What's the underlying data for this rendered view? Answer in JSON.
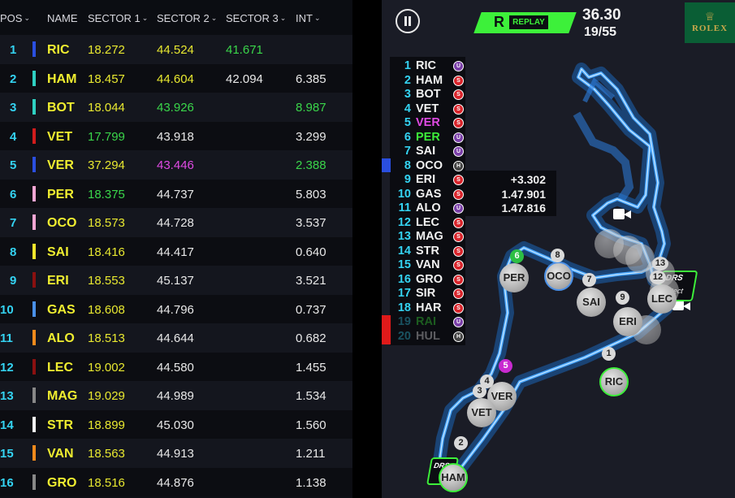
{
  "timing_table": {
    "headers": {
      "pos": "POS",
      "name": "NAME",
      "s1": "SECTOR 1",
      "s2": "SECTOR 2",
      "s3": "SECTOR 3",
      "int": "INT"
    },
    "rows": [
      {
        "pos": "1",
        "name": "RIC",
        "color": "#2a4fe0",
        "s1": "18.272",
        "s1c": "yellow",
        "s2": "44.524",
        "s2c": "yellow",
        "s3": "41.671",
        "s3c": "green",
        "int": "",
        "intc": "white"
      },
      {
        "pos": "2",
        "name": "HAM",
        "color": "#2fd0c2",
        "s1": "18.457",
        "s1c": "yellow",
        "s2": "44.604",
        "s2c": "yellow",
        "s3": "42.094",
        "s3c": "white",
        "int": "6.385",
        "intc": "white"
      },
      {
        "pos": "3",
        "name": "BOT",
        "color": "#2fd0c2",
        "s1": "18.044",
        "s1c": "yellow",
        "s2": "43.926",
        "s2c": "green",
        "s3": "",
        "s3c": "white",
        "int": "8.987",
        "intc": "green"
      },
      {
        "pos": "4",
        "name": "VET",
        "color": "#d11c1c",
        "s1": "17.799",
        "s1c": "green",
        "s2": "43.918",
        "s2c": "white",
        "s3": "",
        "s3c": "white",
        "int": "3.299",
        "intc": "white"
      },
      {
        "pos": "5",
        "name": "VER",
        "color": "#2a4fe0",
        "s1": "37.294",
        "s1c": "yellow",
        "s2": "43.446",
        "s2c": "purple",
        "s3": "",
        "s3c": "white",
        "int": "2.388",
        "intc": "green"
      },
      {
        "pos": "6",
        "name": "PER",
        "color": "#f4a6d4",
        "s1": "18.375",
        "s1c": "green",
        "s2": "44.737",
        "s2c": "white",
        "s3": "",
        "s3c": "white",
        "int": "5.803",
        "intc": "white"
      },
      {
        "pos": "7",
        "name": "OCO",
        "color": "#f4a6d4",
        "s1": "18.573",
        "s1c": "yellow",
        "s2": "44.728",
        "s2c": "white",
        "s3": "",
        "s3c": "white",
        "int": "3.537",
        "intc": "white"
      },
      {
        "pos": "8",
        "name": "SAI",
        "color": "#f2e62c",
        "s1": "18.416",
        "s1c": "yellow",
        "s2": "44.417",
        "s2c": "white",
        "s3": "",
        "s3c": "white",
        "int": "0.640",
        "intc": "white"
      },
      {
        "pos": "9",
        "name": "ERI",
        "color": "#8a1010",
        "s1": "18.553",
        "s1c": "yellow",
        "s2": "45.137",
        "s2c": "white",
        "s3": "",
        "s3c": "white",
        "int": "3.521",
        "intc": "white"
      },
      {
        "pos": "10",
        "name": "GAS",
        "color": "#4a90e8",
        "s1": "18.608",
        "s1c": "yellow",
        "s2": "44.796",
        "s2c": "white",
        "s3": "",
        "s3c": "white",
        "int": "0.737",
        "intc": "white"
      },
      {
        "pos": "11",
        "name": "ALO",
        "color": "#f08a1c",
        "s1": "18.513",
        "s1c": "yellow",
        "s2": "44.644",
        "s2c": "white",
        "s3": "",
        "s3c": "white",
        "int": "0.682",
        "intc": "white"
      },
      {
        "pos": "12",
        "name": "LEC",
        "color": "#8a1010",
        "s1": "19.002",
        "s1c": "yellow",
        "s2": "44.580",
        "s2c": "white",
        "s3": "",
        "s3c": "white",
        "int": "1.455",
        "intc": "white"
      },
      {
        "pos": "13",
        "name": "MAG",
        "color": "#888888",
        "s1": "19.029",
        "s1c": "yellow",
        "s2": "44.989",
        "s2c": "white",
        "s3": "",
        "s3c": "white",
        "int": "1.534",
        "intc": "white"
      },
      {
        "pos": "14",
        "name": "STR",
        "color": "#f4f4f4",
        "s1": "18.899",
        "s1c": "yellow",
        "s2": "45.030",
        "s2c": "white",
        "s3": "",
        "s3c": "white",
        "int": "1.560",
        "intc": "white"
      },
      {
        "pos": "15",
        "name": "VAN",
        "color": "#f08a1c",
        "s1": "18.563",
        "s1c": "yellow",
        "s2": "44.913",
        "s2c": "white",
        "s3": "",
        "s3c": "white",
        "int": "1.211",
        "intc": "white"
      },
      {
        "pos": "16",
        "name": "GRO",
        "color": "#888888",
        "s1": "18.516",
        "s1c": "yellow",
        "s2": "44.876",
        "s2c": "white",
        "s3": "",
        "s3c": "white",
        "int": "1.138",
        "intc": "white"
      }
    ]
  },
  "live": {
    "replay_letter": "R",
    "replay_label": "REPLAY",
    "session_time": "36.30",
    "lap": "19/55",
    "sponsor": "ROLEX",
    "colors": {
      "accent": "#3df03a",
      "pos": "#34d3f2",
      "soft": "#d8232a",
      "ultra": "#7a3ea8"
    },
    "order": [
      {
        "pos": "1",
        "name": "RIC",
        "tyre": "U",
        "tc": "#7a3ea8",
        "nc": ""
      },
      {
        "pos": "2",
        "name": "HAM",
        "tyre": "S",
        "tc": "#d8232a",
        "nc": ""
      },
      {
        "pos": "3",
        "name": "BOT",
        "tyre": "S",
        "tc": "#d8232a",
        "nc": ""
      },
      {
        "pos": "4",
        "name": "VET",
        "tyre": "S",
        "tc": "#d8232a",
        "nc": ""
      },
      {
        "pos": "5",
        "name": "VER",
        "tyre": "S",
        "tc": "#d8232a",
        "nc": "#e04ae4"
      },
      {
        "pos": "6",
        "name": "PER",
        "tyre": "U",
        "tc": "#7a3ea8",
        "nc": "#3df03a"
      },
      {
        "pos": "7",
        "name": "SAI",
        "tyre": "U",
        "tc": "#7a3ea8",
        "nc": ""
      },
      {
        "pos": "8",
        "name": "OCO",
        "tyre": "H",
        "tc": "#444",
        "nc": ""
      },
      {
        "pos": "9",
        "name": "ERI",
        "tyre": "S",
        "tc": "#d8232a",
        "nc": "",
        "gap": "+3.302"
      },
      {
        "pos": "10",
        "name": "GAS",
        "tyre": "S",
        "tc": "#d8232a",
        "nc": "",
        "gap": "1.47.901"
      },
      {
        "pos": "11",
        "name": "ALO",
        "tyre": "U",
        "tc": "#7a3ea8",
        "nc": "",
        "gap": "1.47.816"
      },
      {
        "pos": "12",
        "name": "LEC",
        "tyre": "S",
        "tc": "#d8232a",
        "nc": ""
      },
      {
        "pos": "13",
        "name": "MAG",
        "tyre": "S",
        "tc": "#d8232a",
        "nc": ""
      },
      {
        "pos": "14",
        "name": "STR",
        "tyre": "S",
        "tc": "#d8232a",
        "nc": ""
      },
      {
        "pos": "15",
        "name": "VAN",
        "tyre": "S",
        "tc": "#d8232a",
        "nc": ""
      },
      {
        "pos": "16",
        "name": "GRO",
        "tyre": "S",
        "tc": "#d8232a",
        "nc": ""
      },
      {
        "pos": "17",
        "name": "SIR",
        "tyre": "S",
        "tc": "#d8232a",
        "nc": ""
      },
      {
        "pos": "18",
        "name": "HAR",
        "tyre": "S",
        "tc": "#d8232a",
        "nc": ""
      },
      {
        "pos": "19",
        "name": "RAI",
        "tyre": "U",
        "tc": "#7a3ea8",
        "nc": "#3df03a",
        "dim": true
      },
      {
        "pos": "20",
        "name": "HUL",
        "tyre": "H",
        "tc": "#444",
        "nc": "",
        "dim": true
      }
    ],
    "map_labels": {
      "ric": "RIC",
      "ham": "HAM",
      "vet": "VET",
      "ver": "VER",
      "per": "PER",
      "oco": "OCO",
      "sai": "SAI",
      "eri": "ERI",
      "lec": "LEC",
      "n1": "1",
      "n2": "2",
      "n3": "3",
      "n4": "4",
      "n5": "5",
      "n6": "6",
      "n7": "7",
      "n8": "8",
      "n9": "9",
      "n12": "12",
      "n13": "13"
    },
    "drs_label": "DRS",
    "detect_label": "Detect"
  }
}
